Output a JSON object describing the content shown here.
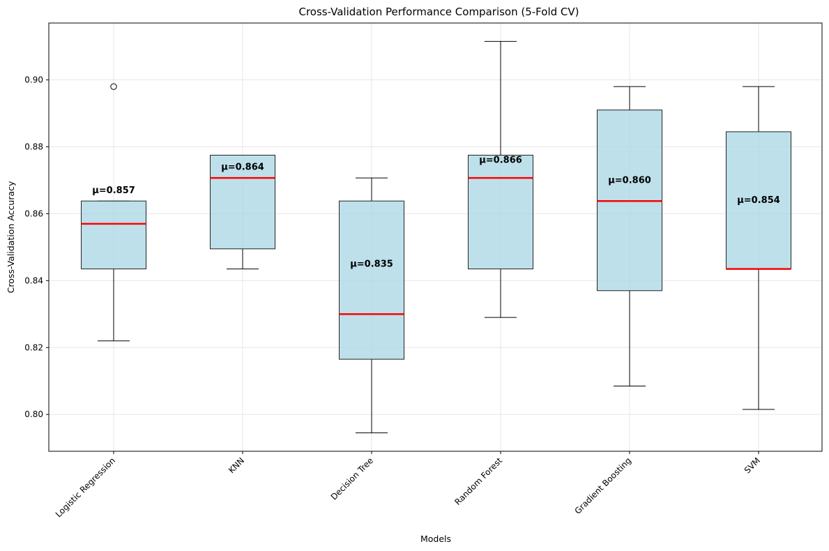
{
  "chart_data": {
    "type": "box",
    "title": "Cross-Validation Performance Comparison (5-Fold CV)",
    "xlabel": "Models",
    "ylabel": "Cross-Validation Accuracy",
    "ylim": [
      0.789,
      0.917
    ],
    "yticks": [
      0.8,
      0.82,
      0.84,
      0.86,
      0.88,
      0.9
    ],
    "ytick_labels": [
      "0.80",
      "0.82",
      "0.84",
      "0.86",
      "0.88",
      "0.90"
    ],
    "grid": true,
    "categories": [
      "Logistic Regression",
      "KNN",
      "Decision Tree",
      "Random Forest",
      "Gradient Boosting",
      "SVM"
    ],
    "boxes": [
      {
        "name": "Logistic Regression",
        "whisker_low": 0.822,
        "q1": 0.8435,
        "median": 0.857,
        "q3": 0.8638,
        "whisker_high": 0.8638,
        "outliers": [
          0.898
        ],
        "mean": 0.857,
        "mean_label": "μ=0.857"
      },
      {
        "name": "KNN",
        "whisker_low": 0.8435,
        "q1": 0.8495,
        "median": 0.8707,
        "q3": 0.8775,
        "whisker_high": 0.8775,
        "outliers": [],
        "mean": 0.864,
        "mean_label": "μ=0.864"
      },
      {
        "name": "Decision Tree",
        "whisker_low": 0.7945,
        "q1": 0.8165,
        "median": 0.83,
        "q3": 0.8638,
        "whisker_high": 0.8707,
        "outliers": [],
        "mean": 0.835,
        "mean_label": "μ=0.835"
      },
      {
        "name": "Random Forest",
        "whisker_low": 0.829,
        "q1": 0.8435,
        "median": 0.8707,
        "q3": 0.8775,
        "whisker_high": 0.9115,
        "outliers": [],
        "mean": 0.866,
        "mean_label": "μ=0.866"
      },
      {
        "name": "Gradient Boosting",
        "whisker_low": 0.8085,
        "q1": 0.837,
        "median": 0.8638,
        "q3": 0.891,
        "whisker_high": 0.898,
        "outliers": [],
        "mean": 0.86,
        "mean_label": "μ=0.860"
      },
      {
        "name": "SVM",
        "whisker_low": 0.8015,
        "q1": 0.8435,
        "median": 0.8435,
        "q3": 0.8845,
        "whisker_high": 0.898,
        "outliers": [],
        "mean": 0.854,
        "mean_label": "μ=0.854"
      }
    ],
    "colors": {
      "box_fill": "#add8e6",
      "box_edge": "#222222",
      "median": "#ff0000",
      "whisker": "#000000",
      "grid": "#e6e6e6"
    }
  }
}
